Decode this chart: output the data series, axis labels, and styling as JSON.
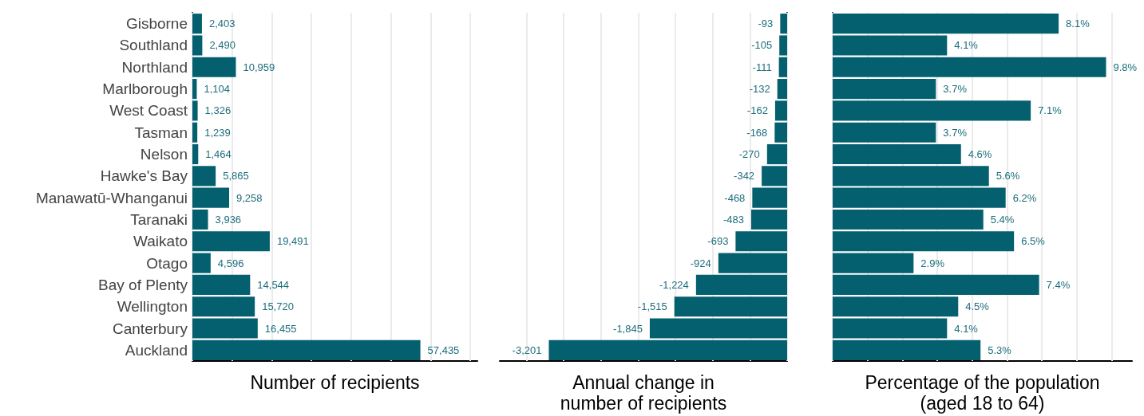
{
  "chart_data": [
    {
      "type": "bar",
      "orientation": "horizontal",
      "xlabel": "Number of recipients",
      "categories": [
        "Gisborne",
        "Southland",
        "Northland",
        "Marlborough",
        "West Coast",
        "Tasman",
        "Nelson",
        "Hawke's Bay",
        "Manawatū-Whanganui",
        "Taranaki",
        "Waikato",
        "Otago",
        "Bay of Plenty",
        "Wellington",
        "Canterbury",
        "Auckland"
      ],
      "values": [
        2403,
        2490,
        10959,
        1104,
        1326,
        1239,
        1464,
        5865,
        9258,
        3936,
        19491,
        4596,
        14544,
        15720,
        16455,
        57435
      ],
      "value_labels": [
        "2,403",
        "2,490",
        "10,959",
        "1,104",
        "1,326",
        "1,239",
        "1,464",
        "5,865",
        "9,258",
        "3,936",
        "19,491",
        "4,596",
        "14,544",
        "15,720",
        "16,455",
        "57,435"
      ],
      "color": "#04606f",
      "xlim": [
        0,
        71800
      ],
      "xticks": [
        {
          "value": 0,
          "label": null
        },
        {
          "value": 10000,
          "label": null
        },
        {
          "value": 20000,
          "label": null
        },
        {
          "value": 30000,
          "label": null
        },
        {
          "value": 40000,
          "label": null
        },
        {
          "value": 50000,
          "label": null
        },
        {
          "value": 60000,
          "label": null
        },
        {
          "value": 70000,
          "label": null
        }
      ],
      "grid": "x",
      "tick_labels": "y"
    },
    {
      "type": "bar",
      "orientation": "horizontal",
      "xlabel": "Annual change in\nnumber of recipients",
      "categories": [
        null,
        null,
        null,
        null,
        null,
        null,
        null,
        null,
        null,
        null,
        null,
        null,
        null,
        null,
        null,
        null
      ],
      "values": [
        -93,
        -105,
        -111,
        -132,
        -162,
        -168,
        -270,
        -342,
        -468,
        -483,
        -693,
        -924,
        -1224,
        -1515,
        -1845,
        -3201
      ],
      "value_labels": [
        "-93",
        "-105",
        "-111",
        "-132",
        "-162",
        "-168",
        "-270",
        "-342",
        "-468",
        "-483",
        "-693",
        "-924",
        "-1,224",
        "-1,515",
        "-1,845",
        "-3,201"
      ],
      "color": "#04606f",
      "xlim": [
        -3860,
        0
      ],
      "xticks": [
        {
          "value": -3500,
          "label": null
        },
        {
          "value": -3000,
          "label": null
        },
        {
          "value": -2500,
          "label": null
        },
        {
          "value": -2000,
          "label": null
        },
        {
          "value": -1500,
          "label": null
        },
        {
          "value": -1000,
          "label": null
        },
        {
          "value": -500,
          "label": null
        },
        {
          "value": 0,
          "label": null
        }
      ],
      "grid": "x",
      "tick_labels": false
    },
    {
      "type": "bar",
      "orientation": "horizontal",
      "xlabel": "Percentage of the population\n(aged 18 to 64)",
      "categories": [
        null,
        null,
        null,
        null,
        null,
        null,
        null,
        null,
        null,
        null,
        null,
        null,
        null,
        null,
        null,
        null
      ],
      "values": [
        8.1,
        4.1,
        9.8,
        3.7,
        7.1,
        3.7,
        4.6,
        5.6,
        6.2,
        5.4,
        6.5,
        2.9,
        7.4,
        4.5,
        4.1,
        5.3
      ],
      "value_labels": [
        "8.1%",
        "4.1%",
        "9.8%",
        "3.7%",
        "7.1%",
        "3.7%",
        "4.6%",
        "5.6%",
        "6.2%",
        "5.4%",
        "6.5%",
        "2.9%",
        "7.4%",
        "4.5%",
        "4.1%",
        "5.3%"
      ],
      "color": "#04606f",
      "xlim": [
        0,
        10.73
      ],
      "xticks": [
        {
          "value": 0,
          "label": null
        },
        {
          "value": 1.25,
          "label": null
        },
        {
          "value": 2.5,
          "label": null
        },
        {
          "value": 3.75,
          "label": null
        },
        {
          "value": 5,
          "label": null
        },
        {
          "value": 6.25,
          "label": null
        },
        {
          "value": 7.5,
          "label": null
        },
        {
          "value": 8.75,
          "label": null
        },
        {
          "value": 10,
          "label": null
        }
      ],
      "grid": "x",
      "tick_labels": false
    }
  ]
}
